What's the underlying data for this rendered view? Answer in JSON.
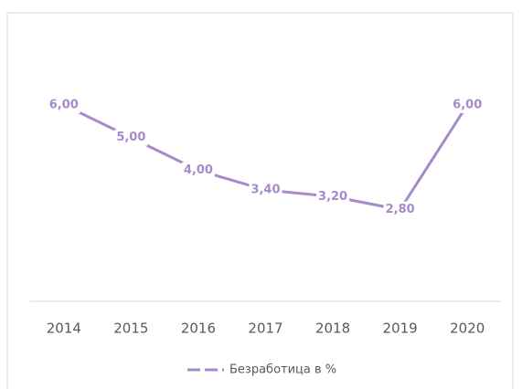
{
  "chart_data": {
    "type": "line",
    "categories": [
      "2014",
      "2015",
      "2016",
      "2017",
      "2018",
      "2019",
      "2020"
    ],
    "series": [
      {
        "name": "Безработица в %",
        "color": "#a58bc9",
        "values": [
          6,
          5,
          4,
          3.4,
          3.2,
          2.8,
          6
        ],
        "value_labels": [
          "6,00",
          "5,00",
          "4,00",
          "3,40",
          "3,20",
          "2,80",
          "6,00"
        ]
      }
    ],
    "ylim": [
      0,
      7
    ],
    "legend": "bottom"
  }
}
